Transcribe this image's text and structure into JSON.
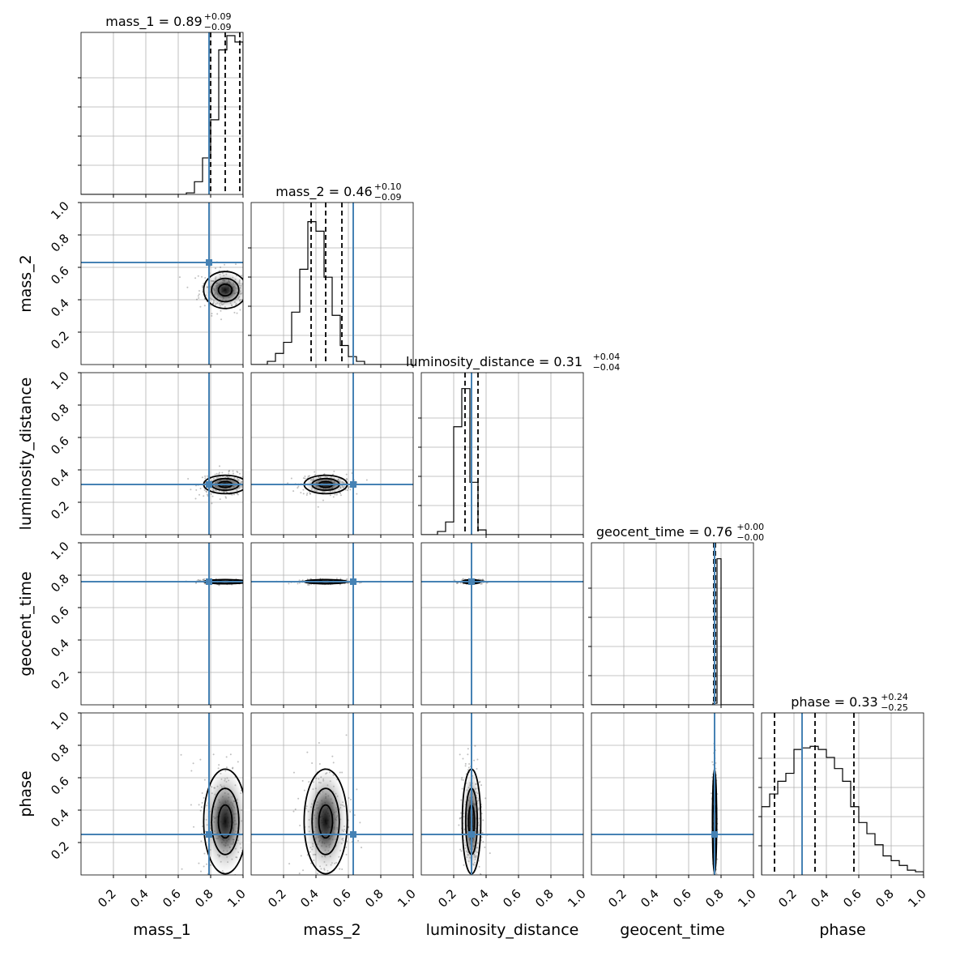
{
  "chart_data": {
    "type": "corner",
    "parameters": [
      "mass_1",
      "mass_2",
      "luminosity_distance",
      "geocent_time",
      "phase"
    ],
    "axis_labels": [
      "mass_1",
      "mass_2",
      "luminosity_distance",
      "geocent_time",
      "phase"
    ],
    "titles": [
      {
        "param": "mass_1",
        "text": "mass_1 = 0.89",
        "plus": "+0.09",
        "minus": "−0.09"
      },
      {
        "param": "mass_2",
        "text": "mass_2 = 0.46",
        "plus": "+0.10",
        "minus": "−0.09"
      },
      {
        "param": "luminosity_distance",
        "text": "luminosity_distance = 0.31",
        "plus": "+0.04",
        "minus": "−0.04"
      },
      {
        "param": "geocent_time",
        "text": "geocent_time = 0.76",
        "plus": "+0.00",
        "minus": "−0.00"
      },
      {
        "param": "phase",
        "text": "phase = 0.33",
        "plus": "+0.24",
        "minus": "−0.25"
      }
    ],
    "range": [
      0,
      1
    ],
    "tick_values": [
      0.2,
      0.4,
      0.6,
      0.8,
      1.0
    ],
    "tick_labels": [
      "0.2",
      "0.4",
      "0.6",
      "0.8",
      "1.0"
    ],
    "grid": true,
    "truths": [
      0.79,
      0.63,
      0.31,
      0.76,
      0.25
    ],
    "truth_color": "#4682b4",
    "medians": [
      0.89,
      0.46,
      0.31,
      0.76,
      0.33
    ],
    "quantiles_16": [
      0.8,
      0.37,
      0.27,
      0.755,
      0.08
    ],
    "quantiles_84": [
      0.98,
      0.56,
      0.35,
      0.765,
      0.57
    ],
    "histograms": [
      {
        "param": "mass_1",
        "edges_start": 0.0,
        "bin_width": 0.05,
        "counts": [
          0,
          0,
          0,
          0,
          0,
          0,
          0,
          0,
          0,
          0,
          0,
          0,
          0,
          0.01,
          0.08,
          0.23,
          0.47,
          0.91,
          1.0,
          0.96
        ]
      },
      {
        "param": "mass_2",
        "edges_start": 0.0,
        "bin_width": 0.05,
        "counts": [
          0,
          0,
          0.02,
          0.07,
          0.14,
          0.33,
          0.6,
          0.9,
          0.84,
          0.55,
          0.31,
          0.12,
          0.05,
          0.02,
          0,
          0,
          0,
          0,
          0,
          0
        ]
      },
      {
        "param": "luminosity_distance",
        "edges_start": 0.0,
        "bin_width": 0.05,
        "counts": [
          0,
          0,
          0.02,
          0.08,
          0.68,
          0.92,
          0.33,
          0.03,
          0,
          0,
          0,
          0,
          0,
          0,
          0,
          0,
          0,
          0,
          0,
          0
        ]
      },
      {
        "param": "geocent_time",
        "edges_start": 0.0,
        "bin_width": 0.025,
        "counts": [
          0,
          0,
          0,
          0,
          0,
          0,
          0,
          0,
          0,
          0,
          0,
          0,
          0,
          0,
          0,
          0,
          0,
          0,
          0,
          0,
          0,
          0,
          0,
          0,
          0,
          0,
          0,
          0,
          0,
          0,
          0.01,
          0.92,
          0,
          0,
          0,
          0,
          0,
          0,
          0,
          0
        ]
      },
      {
        "param": "phase",
        "edges_start": 0.0,
        "bin_width": 0.05,
        "counts": [
          0.43,
          0.51,
          0.59,
          0.64,
          0.79,
          0.8,
          0.81,
          0.79,
          0.74,
          0.67,
          0.59,
          0.43,
          0.33,
          0.26,
          0.19,
          0.12,
          0.09,
          0.06,
          0.03,
          0.02
        ]
      }
    ],
    "contours": [
      {
        "x": "mass_1",
        "y": "mass_2",
        "center": [
          0.89,
          0.46
        ],
        "sigma": [
          0.07,
          0.06
        ],
        "clip_x": [
          0,
          1.0
        ]
      },
      {
        "x": "mass_1",
        "y": "luminosity_distance",
        "center": [
          0.89,
          0.31
        ],
        "sigma": [
          0.07,
          0.03
        ],
        "clip_x": [
          0,
          1.0
        ]
      },
      {
        "x": "mass_2",
        "y": "luminosity_distance",
        "center": [
          0.46,
          0.31
        ],
        "sigma": [
          0.07,
          0.03
        ]
      },
      {
        "x": "mass_1",
        "y": "geocent_time",
        "center": [
          0.89,
          0.76
        ],
        "sigma": [
          0.07,
          0.006
        ],
        "clip_x": [
          0,
          1.0
        ]
      },
      {
        "x": "mass_2",
        "y": "geocent_time",
        "center": [
          0.46,
          0.76
        ],
        "sigma": [
          0.07,
          0.006
        ]
      },
      {
        "x": "luminosity_distance",
        "y": "geocent_time",
        "center": [
          0.31,
          0.76
        ],
        "sigma": [
          0.03,
          0.006
        ]
      },
      {
        "x": "mass_1",
        "y": "phase",
        "center": [
          0.89,
          0.33
        ],
        "sigma": [
          0.07,
          0.17
        ],
        "clip_x": [
          0,
          1.0
        ]
      },
      {
        "x": "mass_2",
        "y": "phase",
        "center": [
          0.46,
          0.33
        ],
        "sigma": [
          0.07,
          0.17
        ]
      },
      {
        "x": "luminosity_distance",
        "y": "phase",
        "center": [
          0.31,
          0.33
        ],
        "sigma": [
          0.03,
          0.17
        ]
      },
      {
        "x": "geocent_time",
        "y": "phase",
        "center": [
          0.76,
          0.33
        ],
        "sigma": [
          0.006,
          0.17
        ]
      }
    ]
  }
}
